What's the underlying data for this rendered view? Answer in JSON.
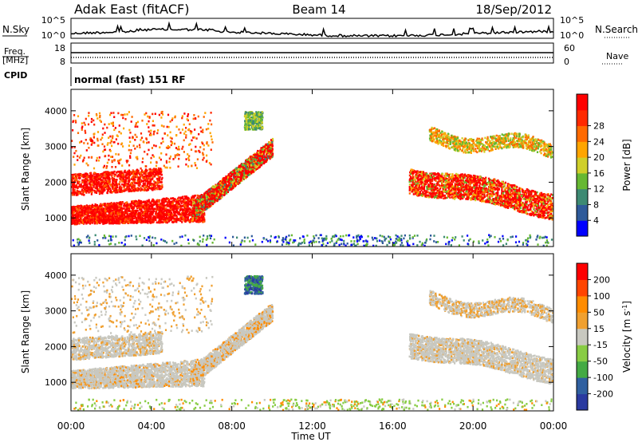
{
  "header": {
    "station": "Adak East (fitACF)",
    "beam": "Beam 14",
    "date": "18/Sep/2012"
  },
  "panels": {
    "nsky": {
      "label": "N.Sky",
      "ticks": [
        "10^5",
        "10^0"
      ],
      "right_ticks": [
        "10^5",
        "10^0"
      ],
      "right_label": "N.Search"
    },
    "freq": {
      "label_top": "Freq.",
      "label_unit": "[MHz]",
      "ticks": [
        "18",
        "8"
      ],
      "right_ticks": [
        "60",
        "0"
      ],
      "right_label": "Nave"
    },
    "cpid": {
      "label": "CPID",
      "text": "normal (fast) 151 RF"
    }
  },
  "colors": {
    "power": [
      "#0000ff",
      "#2e5a9a",
      "#3d8a73",
      "#66b832",
      "#cfcf2a",
      "#ffa500",
      "#ff6a00",
      "#ff2a00",
      "#ff0000"
    ],
    "velocity": [
      "#ff0000",
      "#ff4500",
      "#ff8c00",
      "#f0a030",
      "#c8c8c0",
      "#88cc44",
      "#44aa44",
      "#3060a0",
      "#2a3aa0"
    ]
  },
  "chart_data": [
    {
      "type": "heatmap",
      "title": "Power",
      "xlabel": "Time UT",
      "ylabel": "Slant Range [km]",
      "x_ticks": [
        "00:00",
        "04:00",
        "08:00",
        "12:00",
        "16:00",
        "20:00",
        "00:00"
      ],
      "y_ticks": [
        "1000",
        "2000",
        "3000",
        "4000"
      ],
      "ylim": [
        200,
        4600
      ],
      "colorbar": {
        "label": "Power [dB]",
        "ticks": [
          "4",
          "8",
          "12",
          "16",
          "20",
          "24",
          "28"
        ]
      },
      "features": [
        {
          "desc": "strong band",
          "t_start": 0.0,
          "t_end": 6.5,
          "range_km": [
            900,
            1300
          ],
          "level": "high"
        },
        {
          "desc": "rising band",
          "t_start": 6.0,
          "t_end": 10.0,
          "range_km": [
            1200,
            3200
          ],
          "level": "high"
        },
        {
          "desc": "upper band",
          "t_start": 17.0,
          "t_end": 24.0,
          "range_km": [
            1300,
            2300
          ],
          "level": "high"
        },
        {
          "desc": "far band",
          "t_start": 18.0,
          "t_end": 24.0,
          "range_km": [
            2800,
            3700
          ],
          "level": "mid"
        }
      ]
    },
    {
      "type": "heatmap",
      "title": "Velocity",
      "xlabel": "Time UT",
      "ylabel": "Slant Range [km]",
      "x_ticks": [
        "00:00",
        "04:00",
        "08:00",
        "12:00",
        "16:00",
        "20:00",
        "00:00"
      ],
      "y_ticks": [
        "1000",
        "2000",
        "3000",
        "4000"
      ],
      "ylim": [
        200,
        4600
      ],
      "colorbar": {
        "label": "Velocity [m s",
        "label_sup": "-1",
        "label_end": "]",
        "ticks": [
          "200",
          "100",
          "50",
          "15",
          "-15",
          "-50",
          "-100",
          "-200"
        ]
      }
    }
  ],
  "footer": {
    "xlabel": "Time UT"
  }
}
